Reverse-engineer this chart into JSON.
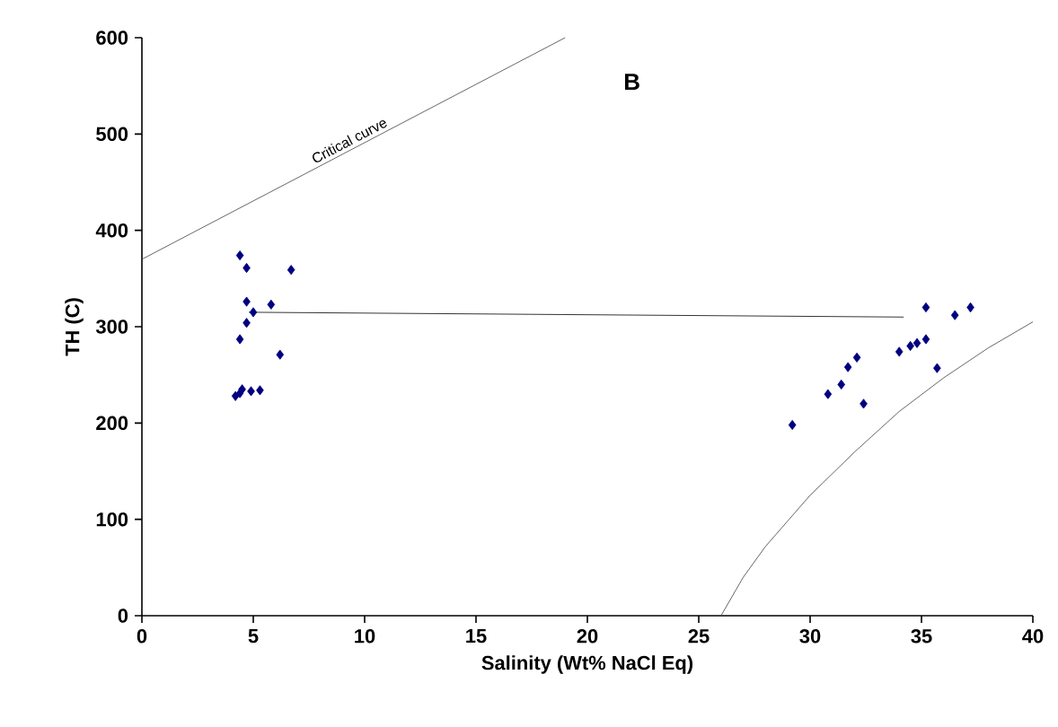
{
  "chart_data": {
    "type": "scatter",
    "title": "B",
    "xlabel": "Salinity (Wt% NaCl Eq)",
    "ylabel": "TH (C)",
    "xlim": [
      0,
      40
    ],
    "ylim": [
      0,
      600
    ],
    "xticks": [
      0,
      5,
      10,
      15,
      20,
      25,
      30,
      35,
      40
    ],
    "yticks": [
      0,
      100,
      200,
      300,
      400,
      500,
      600
    ],
    "grid": false,
    "series": [
      {
        "marker": "diamond",
        "color": "#000080",
        "x": [
          4.4,
          4.7,
          6.7,
          4.7,
          5.8,
          5.0,
          4.7,
          4.4,
          6.2,
          4.2,
          4.5,
          4.9,
          5.3,
          4.4,
          35.2,
          36.5,
          37.2,
          35.2,
          34.8,
          34.5,
          34.0,
          32.1,
          31.7,
          31.4,
          30.8,
          32.4,
          29.2,
          35.7
        ],
        "values": [
          374,
          361,
          359,
          326,
          323,
          315,
          304,
          287,
          271,
          228,
          235,
          233,
          234,
          231,
          320,
          312,
          320,
          287,
          283,
          280,
          274,
          268,
          258,
          240,
          230,
          220,
          198,
          257
        ]
      },
      {
        "type": "line",
        "marker": "none",
        "name": "Critical curve",
        "color": "#404040",
        "x": [
          0,
          19
        ],
        "values": [
          370,
          600
        ]
      },
      {
        "type": "line",
        "marker": "none",
        "color": "#000000",
        "x": [
          4.8,
          34.2
        ],
        "values": [
          315,
          310
        ]
      },
      {
        "type": "line",
        "marker": "none",
        "color": "#404040",
        "x": [
          26,
          27,
          28,
          30,
          32,
          34,
          36,
          38,
          40
        ],
        "values": [
          0,
          40,
          72,
          125,
          170,
          212,
          247,
          278,
          305
        ]
      }
    ]
  }
}
